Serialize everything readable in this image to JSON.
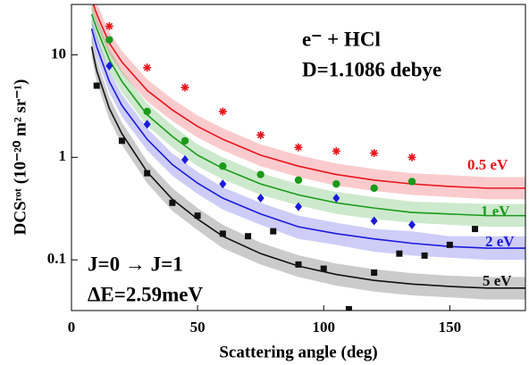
{
  "chart_data": {
    "type": "scatter",
    "xlabel": "Scattering angle (deg)",
    "ylabel": "DCSʳᵒᵗ (10⁻²⁰ m² sr⁻¹)",
    "xlim": [
      0,
      180
    ],
    "xticks": [
      0,
      50,
      100,
      150
    ],
    "ylim": [
      0.032,
      31
    ],
    "yticks": [
      0.1,
      1,
      10
    ],
    "log_y": true,
    "annotations": [
      "e⁻ + HCl",
      "D=1.1086 debye",
      "J=0 → J=1",
      "ΔE=2.59meV"
    ],
    "curve_x": [
      8,
      10,
      15,
      20,
      30,
      40,
      50,
      60,
      75,
      90,
      105,
      120,
      135,
      150,
      165,
      180
    ],
    "series": [
      {
        "name": "0.5 eV",
        "color": "#e8141c",
        "marker": "asterisk",
        "x": [
          15,
          30,
          45,
          60,
          75,
          90,
          105,
          120,
          135
        ],
        "values": [
          19,
          7.5,
          4.8,
          2.8,
          1.65,
          1.25,
          1.15,
          1.1,
          1.0
        ],
        "curve": {
          "values": [
            35,
            25,
            13,
            8.5,
            4.5,
            2.9,
            2.0,
            1.5,
            1.05,
            0.82,
            0.68,
            0.6,
            0.55,
            0.52,
            0.5,
            0.5
          ],
          "upper": [
            44.8,
            32,
            16.6,
            10.9,
            5.76,
            3.71,
            2.56,
            1.92,
            1.34,
            1.05,
            0.87,
            0.77,
            0.7,
            0.67,
            0.64,
            0.64
          ],
          "lower": [
            27.3,
            19.5,
            10.1,
            6.63,
            3.51,
            2.26,
            1.56,
            1.17,
            0.82,
            0.64,
            0.53,
            0.47,
            0.43,
            0.41,
            0.39,
            0.39
          ]
        }
      },
      {
        "name": "1 eV",
        "color": "#1a9a1a",
        "marker": "circle",
        "x": [
          15,
          30,
          45,
          60,
          75,
          90,
          105,
          120,
          135
        ],
        "values": [
          14,
          2.8,
          1.45,
          0.82,
          0.68,
          0.6,
          0.55,
          0.5,
          0.58
        ],
        "curve": {
          "values": [
            25,
            18,
            9,
            5.5,
            2.6,
            1.6,
            1.05,
            0.78,
            0.55,
            0.43,
            0.36,
            0.32,
            0.29,
            0.28,
            0.27,
            0.27
          ],
          "upper": [
            32,
            23,
            11.5,
            7.04,
            3.33,
            2.05,
            1.34,
            1.0,
            0.7,
            0.55,
            0.46,
            0.41,
            0.37,
            0.36,
            0.35,
            0.35
          ],
          "lower": [
            19.5,
            14,
            7.02,
            4.29,
            2.03,
            1.25,
            0.82,
            0.61,
            0.43,
            0.34,
            0.28,
            0.25,
            0.23,
            0.22,
            0.21,
            0.21
          ]
        }
      },
      {
        "name": "2 eV",
        "color": "#1a1adb",
        "marker": "diamond",
        "x": [
          15,
          30,
          45,
          60,
          75,
          90,
          105,
          120,
          135
        ],
        "values": [
          7.8,
          2.1,
          0.95,
          0.55,
          0.4,
          0.33,
          0.4,
          0.24,
          0.22
        ],
        "curve": {
          "values": [
            18,
            12,
            5.5,
            3.2,
            1.5,
            0.85,
            0.56,
            0.4,
            0.28,
            0.21,
            0.18,
            0.16,
            0.145,
            0.135,
            0.13,
            0.13
          ],
          "upper": [
            23,
            15.4,
            7.04,
            4.1,
            1.92,
            1.09,
            0.72,
            0.51,
            0.36,
            0.27,
            0.23,
            0.2,
            0.19,
            0.17,
            0.17,
            0.17
          ],
          "lower": [
            14,
            9.36,
            4.29,
            2.5,
            1.17,
            0.66,
            0.44,
            0.31,
            0.22,
            0.16,
            0.14,
            0.12,
            0.11,
            0.105,
            0.1,
            0.1
          ]
        }
      },
      {
        "name": "5 eV",
        "color": "#111111",
        "marker": "square",
        "x": [
          10,
          20,
          30,
          40,
          50,
          60,
          70,
          80,
          90,
          100,
          110,
          120,
          130,
          140,
          150,
          160
        ],
        "values": [
          5,
          1.45,
          0.7,
          0.36,
          0.27,
          0.18,
          0.17,
          0.19,
          0.09,
          0.082,
          0.033,
          0.075,
          0.115,
          0.11,
          0.14,
          0.2
        ],
        "curve": {
          "values": [
            12,
            7,
            3.0,
            1.7,
            0.72,
            0.39,
            0.25,
            0.17,
            0.115,
            0.087,
            0.072,
            0.063,
            0.058,
            0.055,
            0.053,
            0.053
          ],
          "upper": [
            15.4,
            9,
            3.84,
            2.18,
            0.92,
            0.5,
            0.32,
            0.22,
            0.147,
            0.111,
            0.092,
            0.081,
            0.074,
            0.07,
            0.068,
            0.068
          ],
          "lower": [
            9.36,
            5.46,
            2.34,
            1.33,
            0.56,
            0.3,
            0.195,
            0.13,
            0.09,
            0.068,
            0.056,
            0.049,
            0.045,
            0.043,
            0.041,
            0.041
          ]
        }
      }
    ]
  }
}
